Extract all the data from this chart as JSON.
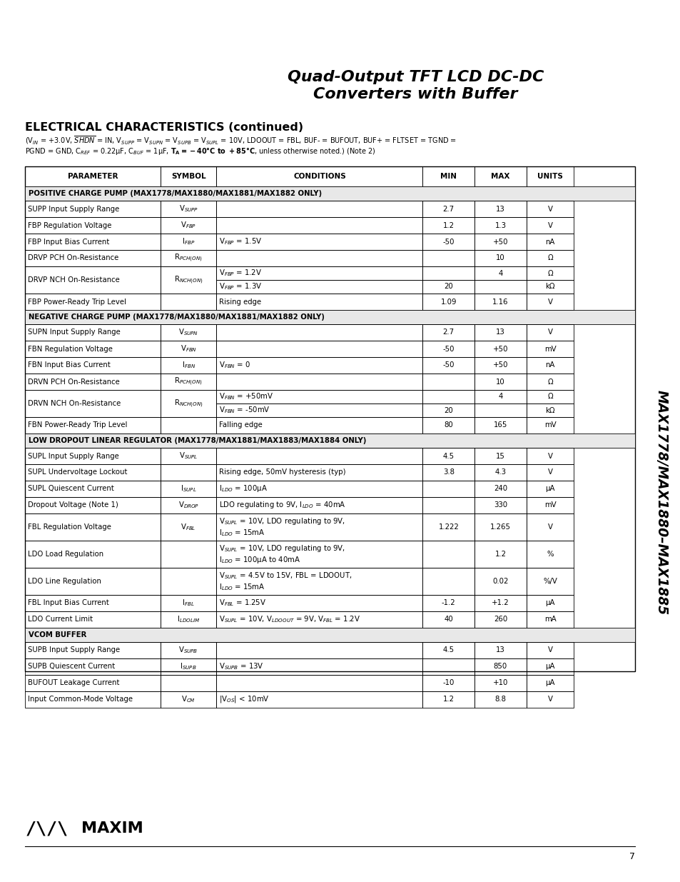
{
  "title_line1": "Quad-Output TFT LCD DC-DC",
  "title_line2": "Converters with Buffer",
  "section_title": "ELECTRICAL CHARACTERISTICS (continued)",
  "side_text": "MAX1778/MAX1880–MAX1885",
  "table_rows": [
    {
      "type": "header"
    },
    {
      "type": "section",
      "text": "POSITIVE CHARGE PUMP (MAX1778/MAX1880/MAX1881/MAX1882 ONLY)"
    },
    {
      "type": "data",
      "param": "SUPP Input Supply Range",
      "symbol": "V$_{SUPP}$",
      "conditions": "",
      "min": "2.7",
      "max": "13",
      "units": "V"
    },
    {
      "type": "data",
      "param": "FBP Regulation Voltage",
      "symbol": "V$_{FBP}$",
      "conditions": "",
      "min": "1.2",
      "max": "1.3",
      "units": "V"
    },
    {
      "type": "data",
      "param": "FBP Input Bias Current",
      "symbol": "I$_{FBP}$",
      "conditions": "V$_{FBP}$ = 1.5V",
      "min": "-50",
      "max": "+50",
      "units": "nA"
    },
    {
      "type": "data",
      "param": "DRVP PCH On-Resistance",
      "symbol": "R$_{PCH(ON)}$",
      "conditions": "",
      "min": "",
      "max": "10",
      "units": "Ω"
    },
    {
      "type": "data2",
      "param": "DRVP NCH On-Resistance",
      "symbol": "R$_{NCH(ON)}$",
      "cond1": "V$_{FBP}$ = 1.2V",
      "min1": "",
      "max1": "4",
      "unit1": "Ω",
      "cond2": "V$_{FBP}$ = 1.3V",
      "min2": "20",
      "max2": "",
      "unit2": "kΩ"
    },
    {
      "type": "data",
      "param": "FBP Power-Ready Trip Level",
      "symbol": "",
      "conditions": "Rising edge",
      "min": "1.09",
      "max": "1.16",
      "units": "V"
    },
    {
      "type": "section",
      "text": "NEGATIVE CHARGE PUMP (MAX1778/MAX1880/MAX1881/MAX1882 ONLY)"
    },
    {
      "type": "data",
      "param": "SUPN Input Supply Range",
      "symbol": "V$_{SUPN}$",
      "conditions": "",
      "min": "2.7",
      "max": "13",
      "units": "V"
    },
    {
      "type": "data",
      "param": "FBN Regulation Voltage",
      "symbol": "V$_{FBN}$",
      "conditions": "",
      "min": "-50",
      "max": "+50",
      "units": "mV"
    },
    {
      "type": "data",
      "param": "FBN Input Bias Current",
      "symbol": "I$_{FBN}$",
      "conditions": "V$_{FBN}$ = 0",
      "min": "-50",
      "max": "+50",
      "units": "nA"
    },
    {
      "type": "data",
      "param": "DRVN PCH On-Resistance",
      "symbol": "R$_{PCH(ON)}$",
      "conditions": "",
      "min": "",
      "max": "10",
      "units": "Ω"
    },
    {
      "type": "data2",
      "param": "DRVN NCH On-Resistance",
      "symbol": "R$_{NCH(ON)}$",
      "cond1": "V$_{FBN}$ = +50mV",
      "min1": "",
      "max1": "4",
      "unit1": "Ω",
      "cond2": "V$_{FBN}$ = -50mV",
      "min2": "20",
      "max2": "",
      "unit2": "kΩ"
    },
    {
      "type": "data",
      "param": "FBN Power-Ready Trip Level",
      "symbol": "",
      "conditions": "Falling edge",
      "min": "80",
      "max": "165",
      "units": "mV"
    },
    {
      "type": "section",
      "text": "LOW DROPOUT LINEAR REGULATOR (MAX1778/MAX1881/MAX1883/MAX1884 ONLY)"
    },
    {
      "type": "data",
      "param": "SUPL Input Supply Range",
      "symbol": "V$_{SUPL}$",
      "conditions": "",
      "min": "4.5",
      "max": "15",
      "units": "V"
    },
    {
      "type": "data",
      "param": "SUPL Undervoltage Lockout",
      "symbol": "",
      "conditions": "Rising edge, 50mV hysteresis (typ)",
      "min": "3.8",
      "max": "4.3",
      "units": "V"
    },
    {
      "type": "data",
      "param": "SUPL Quiescent Current",
      "symbol": "I$_{SUPL}$",
      "conditions": "I$_{LDO}$ = 100μA",
      "min": "",
      "max": "240",
      "units": "μA"
    },
    {
      "type": "data",
      "param": "Dropout Voltage (Note 1)",
      "symbol": "V$_{DROP}$",
      "conditions": "LDO regulating to 9V, I$_{LDO}$ = 40mA",
      "min": "",
      "max": "330",
      "units": "mV"
    },
    {
      "type": "data2",
      "param": "FBL Regulation Voltage",
      "symbol": "V$_{FBL}$",
      "cond1": "V$_{SUPL}$ = 10V, LDO regulating to 9V,\nI$_{LDO}$ = 15mA",
      "min1": "1.222",
      "max1": "1.265",
      "unit1": "V",
      "cond2": "",
      "min2": "",
      "max2": "",
      "unit2": ""
    },
    {
      "type": "data2",
      "param": "LDO Load Regulation",
      "symbol": "",
      "cond1": "V$_{SUPL}$ = 10V, LDO regulating to 9V,\nI$_{LDO}$ = 100μA to 40mA",
      "min1": "",
      "max1": "1.2",
      "unit1": "%",
      "cond2": "",
      "min2": "",
      "max2": "",
      "unit2": ""
    },
    {
      "type": "data2",
      "param": "LDO Line Regulation",
      "symbol": "",
      "cond1": "V$_{SUPL}$ = 4.5V to 15V, FBL = LDOOUT,\nI$_{LDO}$ = 15mA",
      "min1": "",
      "max1": "0.02",
      "unit1": "%/V",
      "cond2": "",
      "min2": "",
      "max2": "",
      "unit2": ""
    },
    {
      "type": "data",
      "param": "FBL Input Bias Current",
      "symbol": "I$_{FBL}$",
      "conditions": "V$_{FBL}$ = 1.25V",
      "min": "-1.2",
      "max": "+1.2",
      "units": "μA"
    },
    {
      "type": "data",
      "param": "LDO Current Limit",
      "symbol": "I$_{LDOLIM}$",
      "conditions": "V$_{SUPL}$ = 10V, V$_{LDOOUT}$ = 9V, V$_{FBL}$ = 1.2V",
      "min": "40",
      "max": "260",
      "units": "mA"
    },
    {
      "type": "section",
      "text": "VCOM BUFFER"
    },
    {
      "type": "data",
      "param": "SUPB Input Supply Range",
      "symbol": "V$_{SUPB}$",
      "conditions": "",
      "min": "4.5",
      "max": "13",
      "units": "V"
    },
    {
      "type": "data",
      "param": "SUPB Quiescent Current",
      "symbol": "I$_{SUPB}$",
      "conditions": "V$_{SUPB}$ = 13V",
      "min": "",
      "max": "850",
      "units": "μA"
    },
    {
      "type": "data",
      "param": "BUFOUT Leakage Current",
      "symbol": "",
      "conditions": "",
      "min": "-10",
      "max": "+10",
      "units": "μA"
    },
    {
      "type": "data",
      "param": "Input Common-Mode Voltage",
      "symbol": "V$_{CM}$",
      "conditions": "|V$_{OS}$| < 10mV",
      "min": "1.2",
      "max": "8.8",
      "units": "V"
    }
  ]
}
